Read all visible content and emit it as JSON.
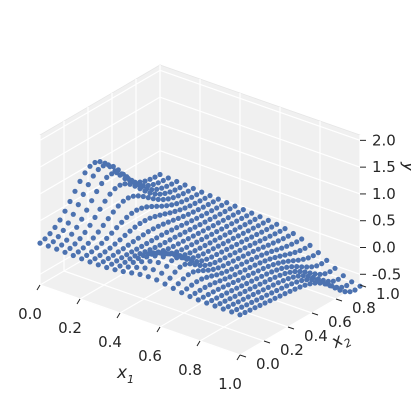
{
  "chart_data": {
    "type": "scatter",
    "projection": "3d",
    "title": "",
    "marker_color": "#4c72b0",
    "pane_color": "#f0f0f0",
    "grid": true,
    "axes": {
      "x1": {
        "label_main": "x",
        "label_sub": "1",
        "lim": [
          0,
          1
        ],
        "ticks": [
          "0.0",
          "0.2",
          "0.4",
          "0.6",
          "0.8",
          "1.0"
        ]
      },
      "x2": {
        "label_main": "x",
        "label_sub": "2",
        "lim": [
          0,
          1
        ],
        "ticks": [
          "0.0",
          "0.2",
          "0.4",
          "0.6",
          "0.8",
          "1.0"
        ]
      },
      "y": {
        "label_main": "y",
        "lim": [
          -0.7,
          2.1
        ],
        "ticks": [
          "-0.5",
          "0.0",
          "0.5",
          "1.0",
          "1.5",
          "2.0"
        ]
      }
    },
    "surface": {
      "description": "regular grid over x1, x2 in [0,1]; y peaks near x1=0 mid x2 and dips at x1=1, x2 near 1",
      "grid_size": 25,
      "x1_range": [
        0,
        1
      ],
      "x2_range": [
        0,
        1
      ]
    }
  }
}
